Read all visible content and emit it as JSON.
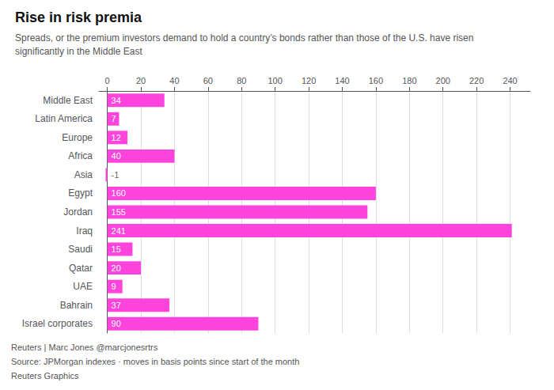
{
  "chart_data": {
    "type": "bar",
    "orientation": "horizontal",
    "title": "Rise in risk premia",
    "subtitle": "Spreads, or the premium investors demand to hold a country’s bonds rather than those of the U.S. have risen\nsignificantly in the Middle East",
    "categories": [
      "Middle East",
      "Latin America",
      "Europe",
      "Africa",
      "Asia",
      "Egypt",
      "Jordan",
      "Iraq",
      "Saudi",
      "Qatar",
      "UAE",
      "Bahrain",
      "Israel corporates"
    ],
    "values": [
      34,
      7,
      12,
      40,
      -1,
      160,
      155,
      241,
      15,
      20,
      9,
      37,
      90
    ],
    "color": "#ff44dd",
    "xlim": [
      -5,
      252
    ],
    "xticks": [
      0,
      20,
      40,
      60,
      80,
      100,
      120,
      140,
      160,
      180,
      200,
      220,
      240
    ],
    "grid": true,
    "data_labels": true,
    "annotations": [
      "Reuters | Marc Jones @marcjonesrtrs",
      "Source: JPMorgan indexes · moves in basis points since start of the month",
      "Reuters Graphics"
    ]
  }
}
